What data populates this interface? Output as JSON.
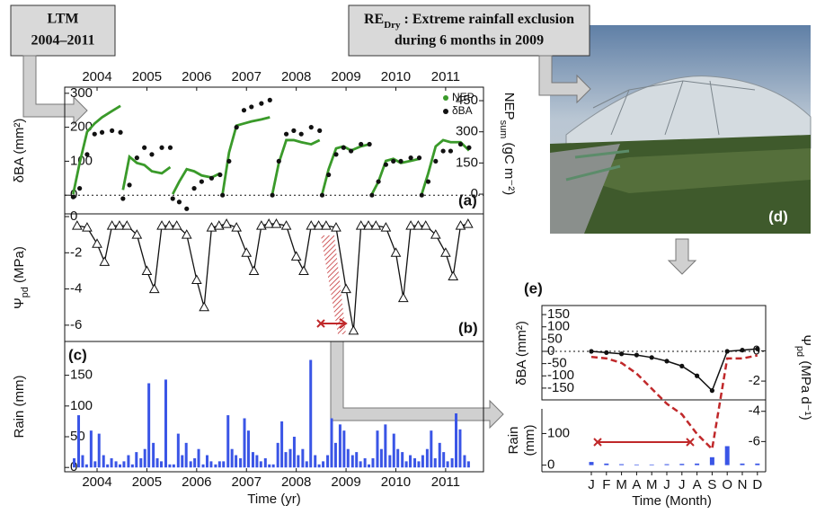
{
  "boxes": {
    "ltm": [
      "LTM",
      "2004–2011"
    ],
    "re": {
      "main": "RE",
      "sub": "Dry",
      "rest": " : Extreme rainfall exclusion",
      "line2": "during 6 months in 2009"
    },
    "photo_label": "(d)"
  },
  "chart_data": [
    {
      "type": "line",
      "panel": "(a)",
      "xlim": [
        2003.85,
        2012.26
      ],
      "xticks": [
        {
          "value": 2004.5,
          "label": "2004"
        },
        {
          "value": 2005.5,
          "label": "2005"
        },
        {
          "value": 2006.5,
          "label": "2006"
        },
        {
          "value": 2007.5,
          "label": "2007"
        },
        {
          "value": 2008.5,
          "label": "2008"
        },
        {
          "value": 2009.5,
          "label": "2009"
        },
        {
          "value": 2010.5,
          "label": "2010"
        },
        {
          "value": 2011.5,
          "label": "2011"
        }
      ],
      "ylim": [
        -55,
        318
      ],
      "yticks": [
        0,
        100,
        200,
        300
      ],
      "y2lim": [
        -95,
        515
      ],
      "y2ticks": [
        0,
        150,
        300,
        450
      ],
      "ylabel": [
        {
          "text": "δBA (mm²)"
        }
      ],
      "y2label": [
        {
          "text": "NEP"
        },
        {
          "text": "sum",
          "sub": true
        },
        {
          "text": " (gC m⁻²)"
        }
      ],
      "hline": 0,
      "legend": "upper right",
      "x": [
        2004.02,
        2004.15,
        2004.3,
        2004.45,
        2004.6,
        2004.8,
        2004.97,
        2004.99,
        2005.02,
        2005.15,
        2005.3,
        2005.45,
        2005.6,
        2005.8,
        2005.97,
        2005.99,
        2006.02,
        2006.15,
        2006.3,
        2006.45,
        2006.6,
        2006.8,
        2006.97,
        2006.99,
        2007.02,
        2007.15,
        2007.3,
        2007.45,
        2007.6,
        2007.8,
        2007.97,
        2007.99,
        2008.02,
        2008.15,
        2008.3,
        2008.45,
        2008.6,
        2008.8,
        2008.97,
        2008.99,
        2009.02,
        2009.15,
        2009.3,
        2009.45,
        2009.6,
        2009.8,
        2009.97,
        2009.99,
        2010.02,
        2010.15,
        2010.3,
        2010.45,
        2010.6,
        2010.8,
        2010.97,
        2010.99,
        2011.02,
        2011.15,
        2011.3,
        2011.45,
        2011.6,
        2011.8,
        2011.97,
        2011.99
      ],
      "series": [
        {
          "name": "NEP",
          "color": "#3a9a2a",
          "axis": "y2",
          "marker": "none",
          "values": [
            0,
            150,
            300,
            340,
            370,
            400,
            425,
            null,
            20,
            180,
            150,
            140,
            110,
            100,
            130,
            null,
            0,
            60,
            120,
            110,
            90,
            80,
            100,
            null,
            0,
            200,
            330,
            340,
            350,
            360,
            370,
            null,
            0,
            150,
            260,
            260,
            250,
            240,
            260,
            null,
            0,
            120,
            220,
            230,
            210,
            230,
            240,
            null,
            0,
            60,
            160,
            170,
            150,
            160,
            170,
            null,
            0,
            100,
            230,
            260,
            250,
            250,
            210,
            null
          ]
        },
        {
          "name": "δBA",
          "color": "#111111",
          "axis": "y",
          "marker": "dot",
          "values": [
            -5,
            20,
            120,
            180,
            185,
            190,
            185,
            null,
            -10,
            30,
            110,
            140,
            120,
            140,
            140,
            null,
            -10,
            -20,
            -40,
            20,
            40,
            50,
            60,
            null,
            0,
            100,
            200,
            250,
            260,
            270,
            280,
            null,
            0,
            100,
            180,
            190,
            180,
            200,
            190,
            null,
            0,
            60,
            120,
            140,
            130,
            150,
            150,
            null,
            0,
            40,
            90,
            100,
            100,
            110,
            110,
            null,
            0,
            40,
            100,
            130,
            130,
            150,
            140,
            null
          ]
        }
      ]
    },
    {
      "type": "line",
      "panel": "(b)",
      "xlim": [
        2003.85,
        2012.26
      ],
      "ylim": [
        -6.9,
        0.15
      ],
      "yticks": [
        0,
        -2,
        -4,
        -6
      ],
      "ylabel": [
        {
          "text": "Ψ"
        },
        {
          "text": "pd",
          "sub": true
        },
        {
          "text": " (MPa)"
        }
      ],
      "color": "#111111",
      "marker": "triangle",
      "x": [
        2004.1,
        2004.3,
        2004.5,
        2004.65,
        2004.8,
        2004.95,
        2005.1,
        2005.3,
        2005.5,
        2005.65,
        2005.8,
        2005.95,
        2006.1,
        2006.3,
        2006.5,
        2006.65,
        2006.8,
        2006.95,
        2007.1,
        2007.3,
        2007.5,
        2007.65,
        2007.8,
        2007.95,
        2008.1,
        2008.3,
        2008.5,
        2008.65,
        2008.8,
        2008.95,
        2009.1,
        2009.3,
        2009.5,
        2009.65,
        2009.8,
        2009.95,
        2010.1,
        2010.3,
        2010.5,
        2010.65,
        2010.8,
        2010.95,
        2011.1,
        2011.3,
        2011.5,
        2011.65,
        2011.8,
        2011.95
      ],
      "values": [
        -0.5,
        -0.6,
        -1.5,
        -2.5,
        -0.5,
        -0.5,
        -0.5,
        -1,
        -3,
        -4,
        -0.5,
        -0.5,
        -0.5,
        -1,
        -3.5,
        -5,
        -0.6,
        -0.5,
        -0.4,
        -0.6,
        -2,
        -3,
        -0.5,
        -0.4,
        -0.4,
        -0.5,
        -2.2,
        -3,
        -0.5,
        -0.5,
        -0.5,
        -0.6,
        -4,
        -6.3,
        -0.5,
        -0.5,
        -0.5,
        -0.6,
        -2,
        -4.5,
        -0.5,
        -0.5,
        -0.5,
        -1,
        -2,
        -3.3,
        -0.5,
        -0.4
      ]
    },
    {
      "type": "bar",
      "panel": "(c)",
      "xlim": [
        2003.85,
        2012.26
      ],
      "ylim": [
        -7,
        205
      ],
      "yticks": [
        0,
        50,
        100,
        150
      ],
      "color": "#3a55e6",
      "ylabel": [
        {
          "text": "Rain (mm)"
        }
      ],
      "xlabel": "Time (yr)",
      "xticks": [
        {
          "value": 2004.5,
          "label": "2004"
        },
        {
          "value": 2005.5,
          "label": "2005"
        },
        {
          "value": 2006.5,
          "label": "2006"
        },
        {
          "value": 2007.5,
          "label": "2007"
        },
        {
          "value": 2008.5,
          "label": "2008"
        },
        {
          "value": 2009.5,
          "label": "2009"
        },
        {
          "value": 2010.5,
          "label": "2010"
        },
        {
          "value": 2011.5,
          "label": "2011"
        }
      ],
      "x": [
        2004.04,
        2004.13,
        2004.21,
        2004.29,
        2004.38,
        2004.46,
        2004.54,
        2004.63,
        2004.71,
        2004.79,
        2004.88,
        2004.96,
        2005.04,
        2005.13,
        2005.21,
        2005.29,
        2005.38,
        2005.46,
        2005.54,
        2005.63,
        2005.71,
        2005.79,
        2005.88,
        2005.96,
        2006.04,
        2006.13,
        2006.21,
        2006.29,
        2006.38,
        2006.46,
        2006.54,
        2006.63,
        2006.71,
        2006.79,
        2006.88,
        2006.96,
        2007.04,
        2007.13,
        2007.21,
        2007.29,
        2007.38,
        2007.46,
        2007.54,
        2007.63,
        2007.71,
        2007.79,
        2007.88,
        2007.96,
        2008.04,
        2008.13,
        2008.21,
        2008.29,
        2008.38,
        2008.46,
        2008.54,
        2008.63,
        2008.71,
        2008.79,
        2008.88,
        2008.96,
        2009.04,
        2009.13,
        2009.21,
        2009.29,
        2009.38,
        2009.46,
        2009.54,
        2009.63,
        2009.71,
        2009.79,
        2009.88,
        2009.96,
        2010.04,
        2010.13,
        2010.21,
        2010.29,
        2010.38,
        2010.46,
        2010.54,
        2010.63,
        2010.71,
        2010.79,
        2010.88,
        2010.96,
        2011.04,
        2011.13,
        2011.21,
        2011.29,
        2011.38,
        2011.46,
        2011.54,
        2011.63,
        2011.71,
        2011.79,
        2011.88,
        2011.96
      ],
      "values": [
        15,
        85,
        20,
        5,
        60,
        10,
        55,
        20,
        5,
        15,
        10,
        5,
        10,
        20,
        5,
        25,
        15,
        30,
        137,
        40,
        15,
        10,
        143,
        5,
        5,
        55,
        20,
        40,
        10,
        15,
        30,
        5,
        20,
        10,
        5,
        10,
        10,
        85,
        30,
        20,
        15,
        80,
        60,
        25,
        20,
        10,
        15,
        5,
        5,
        40,
        75,
        25,
        30,
        50,
        20,
        30,
        10,
        175,
        20,
        5,
        10,
        20,
        80,
        40,
        70,
        60,
        30,
        20,
        25,
        10,
        15,
        5,
        15,
        60,
        30,
        70,
        20,
        55,
        30,
        25,
        10,
        20,
        15,
        10,
        20,
        30,
        60,
        15,
        40,
        25,
        10,
        15,
        88,
        62,
        20,
        10
      ]
    },
    {
      "type": "line",
      "panel": "(e)",
      "categories": [
        "J",
        "F",
        "M",
        "A",
        "M",
        "J",
        "J",
        "A",
        "S",
        "O",
        "N",
        "D"
      ],
      "xlabel": "Time (Month)",
      "ylim": [
        -198,
        187
      ],
      "yticks": [
        150,
        100,
        50,
        0,
        -50,
        -100,
        -150
      ],
      "y2lim": [
        -8,
        3
      ],
      "y2ticks": [
        0,
        -2,
        -4,
        -6
      ],
      "y3lim": [
        -21,
        178
      ],
      "y3ticks": [
        0,
        100
      ],
      "ylabel": [
        {
          "text": "δBA (mm²)"
        }
      ],
      "y2label": [
        {
          "text": "Ψ"
        },
        {
          "text": "pd",
          "sub": true
        },
        {
          "text": " (MPa d⁻¹)"
        }
      ],
      "y3label": [
        "Rain",
        "(mm)"
      ],
      "hline": 0,
      "series": [
        {
          "color": "#111111",
          "axis": "y",
          "marker": "dot",
          "values": [
            0,
            -5,
            -10,
            -15,
            -25,
            -40,
            -60,
            -100,
            -160,
            0,
            5,
            10
          ]
        },
        {
          "color": "#c0282a",
          "axis": "y2",
          "marker": "none",
          "dash": true,
          "values": [
            -0.4,
            -0.5,
            -0.8,
            -1.5,
            -2.5,
            -3.5,
            -4.2,
            -5.5,
            -6.5,
            -0.5,
            -0.5,
            -0.3
          ]
        },
        {
          "color": "#3a55e6",
          "axis": "y3",
          "marker": "bar",
          "values": [
            10,
            5,
            3,
            2,
            2,
            3,
            4,
            5,
            25,
            60,
            5,
            5
          ]
        }
      ]
    }
  ]
}
